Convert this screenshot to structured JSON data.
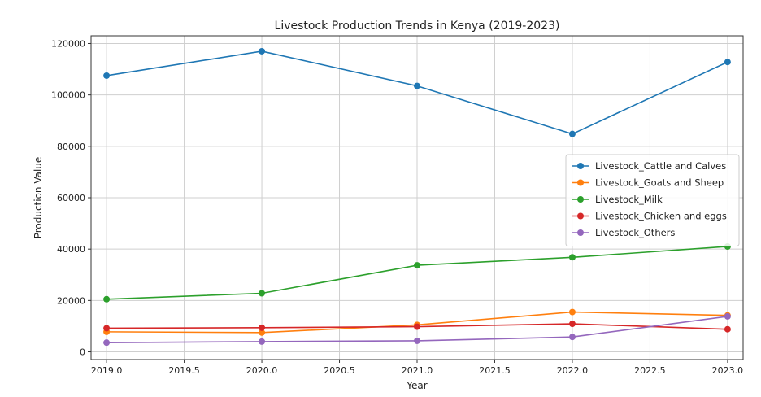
{
  "chart_data": {
    "type": "line",
    "title": "Livestock Production Trends in Kenya (2019-2023)",
    "xlabel": "Year",
    "ylabel": "Production Value",
    "x": [
      2019,
      2020,
      2021,
      2022,
      2023
    ],
    "xlim": [
      2018.9,
      2023.1
    ],
    "ylim": [
      -3000,
      123000
    ],
    "xticks": [
      "2019.0",
      "2019.5",
      "2020.0",
      "2020.5",
      "2021.0",
      "2021.5",
      "2022.0",
      "2022.5",
      "2023.0"
    ],
    "yticks": [
      "0",
      "20000",
      "40000",
      "60000",
      "80000",
      "100000",
      "120000"
    ],
    "grid": true,
    "legend_position": "center-right",
    "series": [
      {
        "name": "Livestock_Cattle and Calves",
        "color": "#1f77b4",
        "values": [
          107500,
          117000,
          103500,
          84800,
          112800
        ]
      },
      {
        "name": "Livestock_Goats and Sheep",
        "color": "#ff7f0e",
        "values": [
          7800,
          7500,
          10500,
          15500,
          14200
        ]
      },
      {
        "name": "Livestock_Milk",
        "color": "#2ca02c",
        "values": [
          20500,
          22800,
          33700,
          36800,
          41000
        ]
      },
      {
        "name": "Livestock_Chicken and eggs",
        "color": "#d62728",
        "values": [
          9200,
          9400,
          9800,
          10900,
          8800
        ]
      },
      {
        "name": "Livestock_Others",
        "color": "#9467bd",
        "values": [
          3600,
          4000,
          4300,
          5800,
          13800
        ]
      }
    ]
  }
}
